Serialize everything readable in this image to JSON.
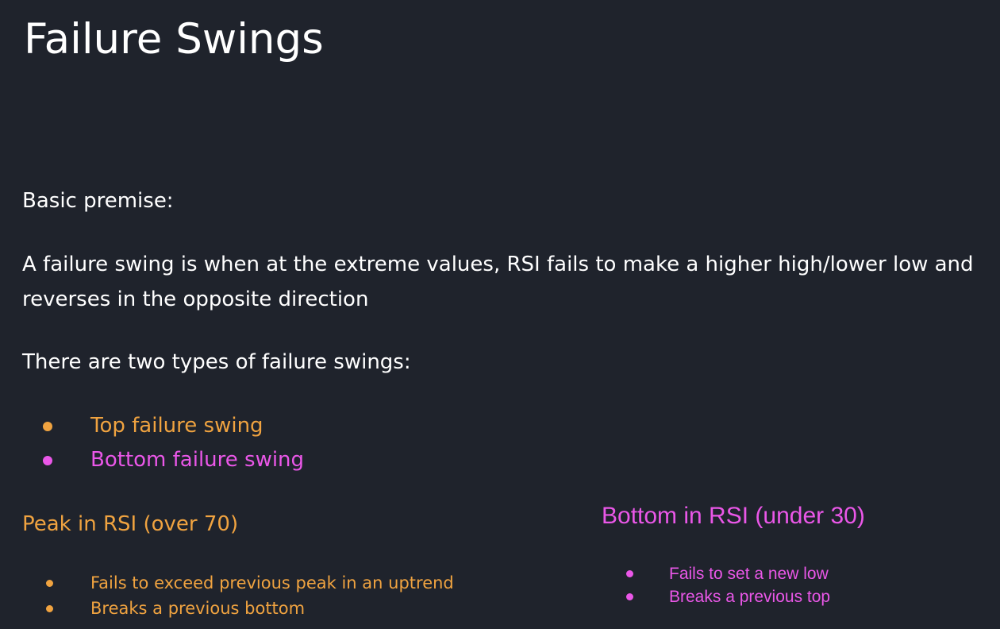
{
  "slide": {
    "title": "Failure Swings",
    "premise_label": "Basic premise:",
    "definition_line1": "A failure swing is when at the extreme values, RSI fails to make a higher high/lower low and",
    "definition_line2": "reverses in the opposite direction",
    "types_intro": "There are two types of failure swings:",
    "types": [
      {
        "label": "Top failure swing",
        "color": "#f0a340"
      },
      {
        "label": "Bottom failure swing",
        "color": "#ea57e8"
      }
    ],
    "peak": {
      "heading": "Peak in RSI (over 70)",
      "items": [
        "Fails to exceed previous peak in an uptrend",
        "Breaks a previous bottom"
      ]
    },
    "bottom": {
      "heading": "Bottom in RSI (under 30)",
      "items": [
        "Fails to set a new low",
        "Breaks a previous top"
      ]
    }
  },
  "colors": {
    "background": "#1f232c",
    "text": "#ffffff",
    "orange": "#f0a340",
    "magenta": "#ea57e8"
  }
}
